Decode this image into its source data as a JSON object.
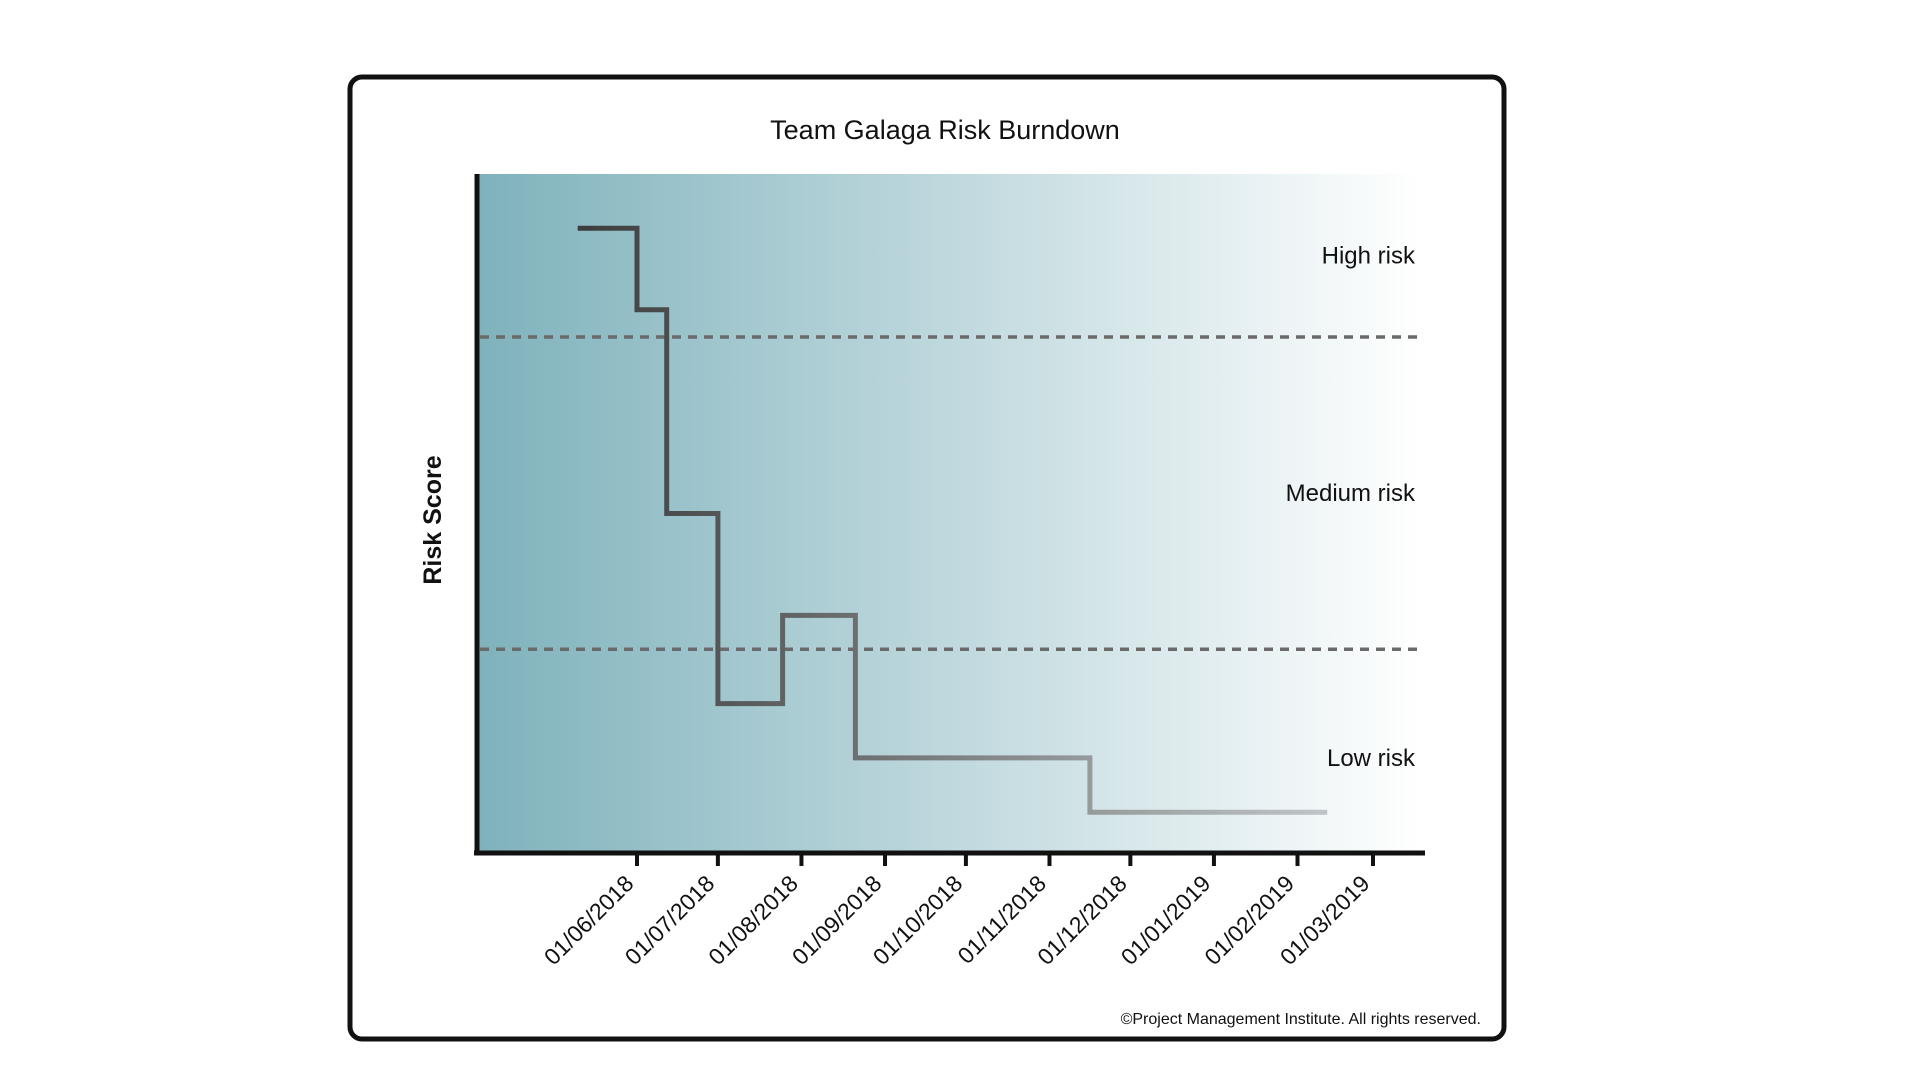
{
  "chart_data": {
    "type": "line",
    "step": true,
    "title": "Team Galaga Risk Burndown",
    "xlabel": "",
    "ylabel": "Risk Score",
    "x_ticks": [
      "01/06/2018",
      "01/07/2018",
      "01/08/2018",
      "01/09/2018",
      "01/10/2018",
      "01/11/2018",
      "01/12/2018",
      "01/01/2019",
      "01/02/2019",
      "01/03/2019"
    ],
    "ylim": [
      0,
      100
    ],
    "series": [
      {
        "values": [
          {
            "x": "2018-05-10",
            "y": 92
          },
          {
            "x": "2018-06-01",
            "y": 80
          },
          {
            "x": "2018-06-12",
            "y": 50
          },
          {
            "x": "2018-07-01",
            "y": 22
          },
          {
            "x": "2018-07-25",
            "y": 35
          },
          {
            "x": "2018-08-21",
            "y": 14
          },
          {
            "x": "2018-11-16",
            "y": 6
          },
          {
            "x": "2019-02-12",
            "y": 6
          }
        ]
      }
    ],
    "thresholds": [
      {
        "y": 76,
        "style": "dashed"
      },
      {
        "y": 30,
        "style": "dashed"
      }
    ],
    "zones": [
      {
        "label": "High risk",
        "y": 88
      },
      {
        "label": "Medium risk",
        "y": 53
      },
      {
        "label": "Low risk",
        "y": 14
      }
    ],
    "grid": false,
    "colors": {
      "gradient_start": "#7fb2bc",
      "gradient_end": "#ffffff",
      "line_dark": "#2a2a2a",
      "line_light": "#bfc5c7",
      "threshold": "#6a6a6a"
    }
  },
  "footer": {
    "copyright": "©Project Management Institute. All rights reserved."
  }
}
